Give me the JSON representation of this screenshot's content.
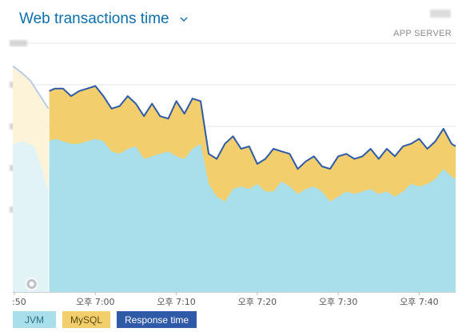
{
  "header": {
    "title": "Web transactions time",
    "app_server_label": "APP SERVER"
  },
  "legend": [
    {
      "key": "jvm",
      "label": "JVM",
      "color": "#a9dfea"
    },
    {
      "key": "mysql",
      "label": "MySQL",
      "color": "#f2cf6c"
    },
    {
      "key": "resp",
      "label": "Response time",
      "color": "#2f5aa8"
    }
  ],
  "chart_data": {
    "type": "area",
    "title": "Web transactions time",
    "x_tick_labels": [
      ":50",
      "오후 7:00",
      "오후 7:10",
      "오후 7:20",
      "오후 7:30",
      "오후 7:40"
    ],
    "x_tick_minutes": [
      50,
      60,
      70,
      80,
      90,
      100
    ],
    "x_range_minutes": [
      49.8,
      104.5
    ],
    "selection_start_minute": 54.2,
    "y_tick_labels_visible": false,
    "y_gridlines": 5,
    "grid": true,
    "legend_position": "bottom-left",
    "series": [
      {
        "name": "JVM",
        "color": "#a9dfea",
        "points": [
          [
            54.3,
            0.6
          ],
          [
            55.0,
            0.61
          ],
          [
            56.0,
            0.6
          ],
          [
            57.0,
            0.59
          ],
          [
            58.0,
            0.59
          ],
          [
            59.0,
            0.6
          ],
          [
            60.0,
            0.61
          ],
          [
            61.0,
            0.6
          ],
          [
            62.0,
            0.56
          ],
          [
            63.0,
            0.55
          ],
          [
            64.0,
            0.57
          ],
          [
            65.0,
            0.58
          ],
          [
            66.0,
            0.53
          ],
          [
            67.0,
            0.54
          ],
          [
            68.0,
            0.55
          ],
          [
            69.0,
            0.56
          ],
          [
            70.0,
            0.54
          ],
          [
            71.0,
            0.53
          ],
          [
            72.0,
            0.57
          ],
          [
            73.0,
            0.59
          ],
          [
            74.0,
            0.43
          ],
          [
            75.0,
            0.38
          ],
          [
            76.0,
            0.36
          ],
          [
            77.0,
            0.41
          ],
          [
            78.0,
            0.42
          ],
          [
            79.0,
            0.41
          ],
          [
            80.0,
            0.43
          ],
          [
            81.0,
            0.4
          ],
          [
            82.0,
            0.4
          ],
          [
            83.0,
            0.44
          ],
          [
            84.0,
            0.42
          ],
          [
            85.0,
            0.39
          ],
          [
            86.0,
            0.41
          ],
          [
            87.0,
            0.42
          ],
          [
            88.0,
            0.4
          ],
          [
            89.0,
            0.36
          ],
          [
            90.0,
            0.38
          ],
          [
            91.0,
            0.4
          ],
          [
            92.0,
            0.39
          ],
          [
            93.0,
            0.4
          ],
          [
            94.0,
            0.41
          ],
          [
            95.0,
            0.39
          ],
          [
            96.0,
            0.4
          ],
          [
            97.0,
            0.38
          ],
          [
            98.0,
            0.4
          ],
          [
            99.0,
            0.43
          ],
          [
            100.0,
            0.42
          ],
          [
            101.0,
            0.43
          ],
          [
            102.0,
            0.45
          ],
          [
            103.0,
            0.49
          ],
          [
            104.0,
            0.46
          ],
          [
            104.5,
            0.45
          ]
        ]
      },
      {
        "name": "MySQL",
        "color": "#f2cf6c",
        "points": [
          [
            54.3,
            0.8
          ],
          [
            55.0,
            0.81
          ],
          [
            56.0,
            0.81
          ],
          [
            57.0,
            0.78
          ],
          [
            58.0,
            0.8
          ],
          [
            59.0,
            0.81
          ],
          [
            60.0,
            0.82
          ],
          [
            61.0,
            0.78
          ],
          [
            62.0,
            0.73
          ],
          [
            63.0,
            0.74
          ],
          [
            64.0,
            0.78
          ],
          [
            65.0,
            0.75
          ],
          [
            66.0,
            0.7
          ],
          [
            67.0,
            0.75
          ],
          [
            68.0,
            0.7
          ],
          [
            69.0,
            0.69
          ],
          [
            70.0,
            0.76
          ],
          [
            71.0,
            0.71
          ],
          [
            72.0,
            0.77
          ],
          [
            73.0,
            0.76
          ],
          [
            74.0,
            0.55
          ],
          [
            75.0,
            0.53
          ],
          [
            76.0,
            0.59
          ],
          [
            77.0,
            0.62
          ],
          [
            78.0,
            0.57
          ],
          [
            79.0,
            0.58
          ],
          [
            80.0,
            0.51
          ],
          [
            81.0,
            0.53
          ],
          [
            82.0,
            0.57
          ],
          [
            83.0,
            0.56
          ],
          [
            84.0,
            0.55
          ],
          [
            85.0,
            0.49
          ],
          [
            86.0,
            0.52
          ],
          [
            87.0,
            0.54
          ],
          [
            88.0,
            0.5
          ],
          [
            89.0,
            0.49
          ],
          [
            90.0,
            0.54
          ],
          [
            91.0,
            0.55
          ],
          [
            92.0,
            0.53
          ],
          [
            93.0,
            0.54
          ],
          [
            94.0,
            0.57
          ],
          [
            95.0,
            0.53
          ],
          [
            96.0,
            0.57
          ],
          [
            97.0,
            0.54
          ],
          [
            98.0,
            0.58
          ],
          [
            99.0,
            0.59
          ],
          [
            100.0,
            0.61
          ],
          [
            101.0,
            0.57
          ],
          [
            102.0,
            0.6
          ],
          [
            103.0,
            0.65
          ],
          [
            104.0,
            0.59
          ],
          [
            104.5,
            0.58
          ]
        ]
      },
      {
        "name": "Response time",
        "color": "#2f5aa8",
        "points": [
          [
            54.3,
            0.8
          ],
          [
            55.0,
            0.81
          ],
          [
            56.0,
            0.81
          ],
          [
            57.0,
            0.78
          ],
          [
            58.0,
            0.8
          ],
          [
            59.0,
            0.81
          ],
          [
            60.0,
            0.82
          ],
          [
            61.0,
            0.78
          ],
          [
            62.0,
            0.73
          ],
          [
            63.0,
            0.74
          ],
          [
            64.0,
            0.78
          ],
          [
            65.0,
            0.75
          ],
          [
            66.0,
            0.7
          ],
          [
            67.0,
            0.75
          ],
          [
            68.0,
            0.7
          ],
          [
            69.0,
            0.69
          ],
          [
            70.0,
            0.76
          ],
          [
            71.0,
            0.71
          ],
          [
            72.0,
            0.77
          ],
          [
            73.0,
            0.76
          ],
          [
            74.0,
            0.55
          ],
          [
            75.0,
            0.53
          ],
          [
            76.0,
            0.59
          ],
          [
            77.0,
            0.62
          ],
          [
            78.0,
            0.57
          ],
          [
            79.0,
            0.58
          ],
          [
            80.0,
            0.51
          ],
          [
            81.0,
            0.53
          ],
          [
            82.0,
            0.57
          ],
          [
            83.0,
            0.56
          ],
          [
            84.0,
            0.55
          ],
          [
            85.0,
            0.49
          ],
          [
            86.0,
            0.52
          ],
          [
            87.0,
            0.54
          ],
          [
            88.0,
            0.5
          ],
          [
            89.0,
            0.49
          ],
          [
            90.0,
            0.54
          ],
          [
            91.0,
            0.55
          ],
          [
            92.0,
            0.53
          ],
          [
            93.0,
            0.54
          ],
          [
            94.0,
            0.57
          ],
          [
            95.0,
            0.53
          ],
          [
            96.0,
            0.57
          ],
          [
            97.0,
            0.54
          ],
          [
            98.0,
            0.58
          ],
          [
            99.0,
            0.59
          ],
          [
            100.0,
            0.61
          ],
          [
            101.0,
            0.57
          ],
          [
            102.0,
            0.6
          ],
          [
            103.0,
            0.65
          ],
          [
            104.0,
            0.59
          ],
          [
            104.5,
            0.58
          ]
        ]
      }
    ],
    "faded_history": [
      {
        "series": "JVM",
        "color": "#e1f3f7",
        "points": [
          [
            49.8,
            0.59
          ],
          [
            51.0,
            0.6
          ],
          [
            52.5,
            0.58
          ],
          [
            53.5,
            0.48
          ],
          [
            54.2,
            0.4
          ]
        ]
      },
      {
        "series": "MySQL",
        "color": "#fdf3d8",
        "points": [
          [
            49.8,
            0.9
          ],
          [
            51.0,
            0.87
          ],
          [
            52.0,
            0.84
          ],
          [
            53.0,
            0.79
          ],
          [
            54.2,
            0.73
          ]
        ]
      },
      {
        "series": "Response time",
        "color": "#b9cce8",
        "points": [
          [
            49.8,
            0.9
          ],
          [
            51.0,
            0.87
          ],
          [
            52.0,
            0.84
          ],
          [
            53.0,
            0.79
          ],
          [
            54.2,
            0.73
          ]
        ]
      }
    ]
  }
}
